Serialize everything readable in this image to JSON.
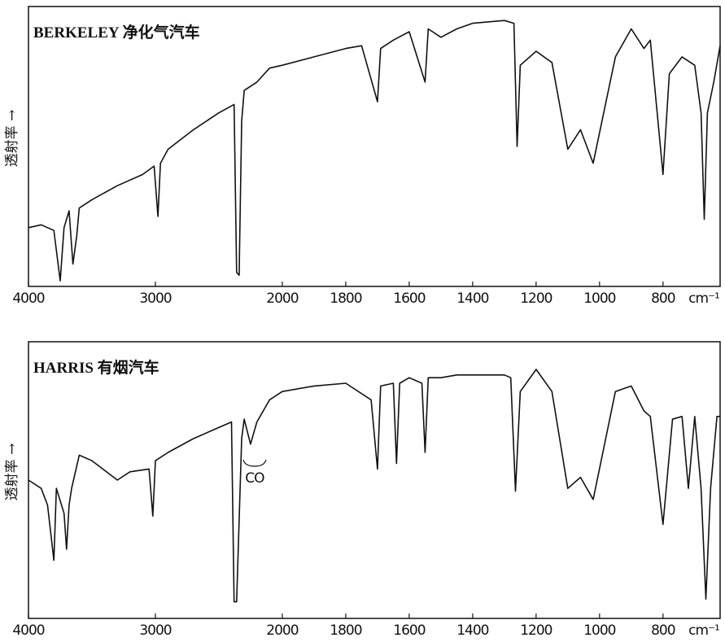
{
  "chart_data": [
    {
      "type": "line",
      "title": "BERKELEY 净化气汽车",
      "ylabel": "透射率 →",
      "xlabel": "cm⁻¹",
      "xlim": [
        4000,
        620
      ],
      "xticks": [
        4000,
        3000,
        2000,
        1800,
        1600,
        1400,
        1200,
        1000,
        800
      ],
      "ylim": [
        0,
        100
      ],
      "color": "#111111",
      "x": [
        4000,
        3900,
        3800,
        3750,
        3720,
        3680,
        3650,
        3620,
        3600,
        3500,
        3300,
        3100,
        3010,
        2980,
        2960,
        2900,
        2700,
        2500,
        2380,
        2360,
        2340,
        2320,
        2300,
        2200,
        2100,
        2000,
        1900,
        1800,
        1750,
        1700,
        1690,
        1650,
        1600,
        1550,
        1540,
        1500,
        1450,
        1400,
        1300,
        1270,
        1260,
        1250,
        1200,
        1150,
        1100,
        1060,
        1020,
        950,
        900,
        860,
        840,
        800,
        780,
        740,
        700,
        680,
        670,
        660,
        640,
        620
      ],
      "values": [
        21,
        22,
        20,
        2,
        21,
        27,
        8,
        18,
        28,
        31,
        36,
        40,
        43,
        25,
        44,
        49,
        56,
        62,
        65,
        5,
        4,
        59,
        70,
        73,
        78,
        79,
        82,
        85,
        86,
        66,
        85,
        88,
        91,
        73,
        92,
        89,
        92,
        94,
        95,
        94,
        50,
        79,
        84,
        80,
        49,
        56,
        44,
        82,
        92,
        85,
        88,
        40,
        76,
        82,
        79,
        62,
        24,
        62,
        73,
        86
      ]
    },
    {
      "type": "line",
      "title": "HARRIS 有烟汽车",
      "ylabel": "透射率 →",
      "xlabel": "cm⁻¹",
      "annotation": "CO",
      "xlim": [
        4000,
        620
      ],
      "xticks": [
        4000,
        3000,
        2000,
        1800,
        1600,
        1400,
        1200,
        1000,
        800
      ],
      "ylim": [
        0,
        100
      ],
      "color": "#111111",
      "x": [
        4000,
        3900,
        3850,
        3800,
        3780,
        3720,
        3700,
        3680,
        3660,
        3600,
        3500,
        3300,
        3200,
        3050,
        3020,
        3000,
        2900,
        2700,
        2500,
        2400,
        2380,
        2360,
        2320,
        2300,
        2250,
        2200,
        2150,
        2100,
        2000,
        1900,
        1800,
        1720,
        1700,
        1690,
        1650,
        1640,
        1630,
        1600,
        1560,
        1550,
        1540,
        1500,
        1450,
        1400,
        1300,
        1280,
        1265,
        1250,
        1200,
        1150,
        1100,
        1060,
        1020,
        950,
        900,
        860,
        840,
        800,
        770,
        740,
        720,
        700,
        680,
        665,
        650,
        630,
        620
      ],
      "values": [
        50,
        47,
        41,
        21,
        47,
        38,
        25,
        41,
        47,
        59,
        57,
        50,
        53,
        54,
        37,
        57,
        60,
        65,
        69,
        71,
        6,
        6,
        65,
        72,
        63,
        71,
        75,
        79,
        82,
        84,
        85,
        79,
        54,
        84,
        85,
        56,
        85,
        87,
        85,
        60,
        87,
        87,
        88,
        88,
        88,
        87,
        46,
        82,
        90,
        82,
        47,
        51,
        43,
        82,
        84,
        75,
        73,
        34,
        72,
        73,
        47,
        73,
        47,
        7,
        47,
        73,
        73
      ]
    }
  ]
}
